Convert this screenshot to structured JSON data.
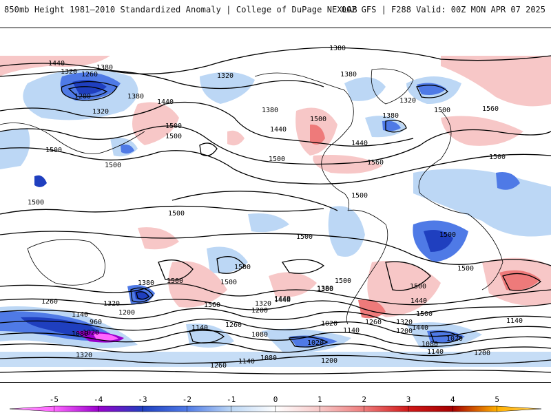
{
  "header": {
    "title": "850mb Height 1981–2010 Standardized Anomaly | College of DuPage NEXLAB",
    "run_info": "00Z GFS | F288 Valid: 00Z MON APR 07 2025"
  },
  "colors": {
    "neg5": "#ff66ff",
    "neg4": "#9900cc",
    "neg3": "#1f3fbf",
    "neg2": "#4f7ae6",
    "neg1": "#bcd7f5",
    "zero": "#ffffff",
    "pos1": "#f7c7c7",
    "pos2": "#ee7a7a",
    "pos3": "#d01818",
    "pos4": "#a50000",
    "pos5": "#ffb000",
    "contour": "#000000",
    "coast": "#000000"
  },
  "contour_labels": [
    "1380",
    "1440",
    "1320",
    "1260",
    "1380",
    "1200",
    "1320",
    "1440",
    "1500",
    "1320",
    "1380",
    "1380",
    "1440",
    "1500",
    "1380",
    "1320",
    "1440",
    "1500",
    "1500",
    "1560",
    "1500",
    "1500",
    "1560",
    "1500",
    "1500",
    "1500",
    "1500",
    "1380",
    "1440",
    "1500",
    "1380",
    "1320",
    "1260",
    "1200",
    "1140",
    "1080",
    "1020",
    "960",
    "1560",
    "1500",
    "1440",
    "1320",
    "1260",
    "1200",
    "1140",
    "1080",
    "1020",
    "1140",
    "1080",
    "1020",
    "1140",
    "1200",
    "1260",
    "1320",
    "1500",
    "1440",
    "1380",
    "1320",
    "1260",
    "1200",
    "1140",
    "1080",
    "1020",
    "1140",
    "1200",
    "1440",
    "1500",
    "1500",
    "1380",
    "1500",
    "1500",
    "1500",
    "1500",
    "1500"
  ],
  "legend": {
    "ticks": [
      "-5",
      "-4",
      "-3",
      "-2",
      "-1",
      "0",
      "1",
      "2",
      "3",
      "4",
      "5"
    ]
  }
}
